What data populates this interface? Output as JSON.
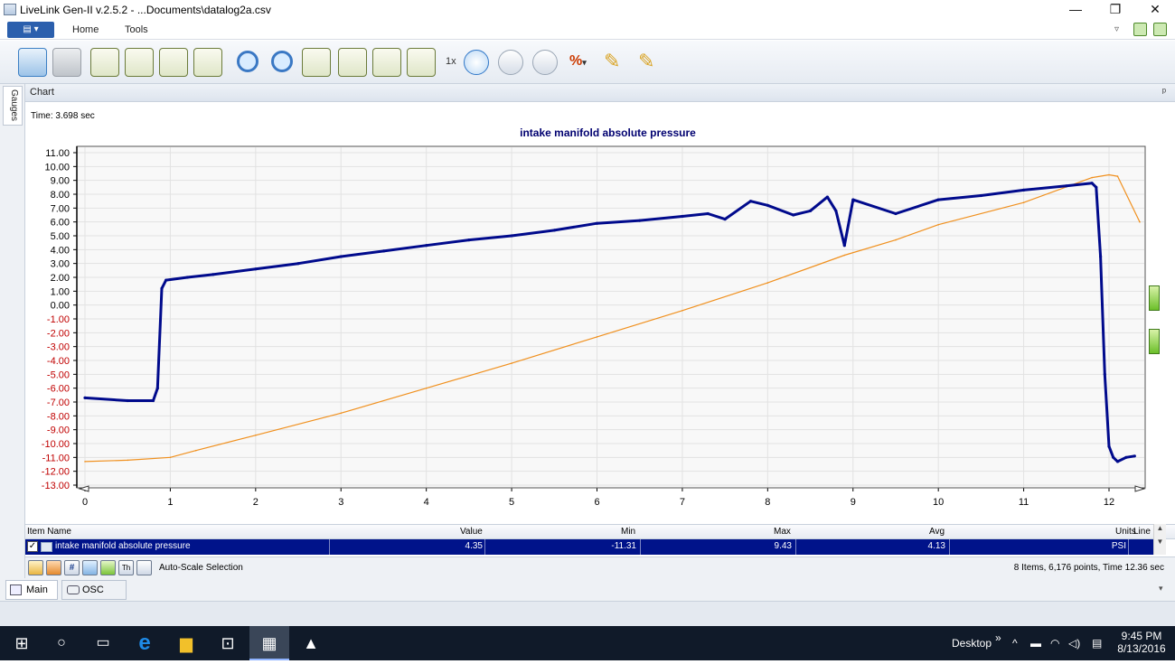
{
  "window": {
    "title": "LiveLink Gen-II  v.2.5.2 - ...Documents\\datalog2a.csv",
    "minimize_glyph": "—",
    "restore_glyph": "❐",
    "close_glyph": "✕"
  },
  "ribbon": {
    "app_menu_glyph": "▤ ▾",
    "tabs": [
      "Home",
      "Tools"
    ]
  },
  "toolbar": {
    "speed_label": "1x",
    "icons": [
      "new-session-icon",
      "save-icon",
      "max-left-icon",
      "max-right-icon",
      "cursor-left-icon",
      "cursor-right-icon",
      "zoom-out-icon",
      "zoom-in-icon",
      "fit-chart-icon",
      "chart-left-icon",
      "chart-right-icon",
      "chart-export-icon",
      "play-icon",
      "pause-icon",
      "stop-icon",
      "percent-icon",
      "pen-left-icon",
      "pen-right-icon"
    ]
  },
  "sidebar": {
    "gauges_tab": "Gauges"
  },
  "chart_panel": {
    "header": "Chart",
    "pin_glyph": "ᵖ",
    "time_label": "Time: 3.698 sec"
  },
  "chart_data": {
    "type": "line",
    "title": "intake manifold absolute pressure",
    "xlim": [
      0,
      12.36
    ],
    "ylim": [
      -13,
      11
    ],
    "x_ticks": [
      0,
      1,
      2,
      3,
      4,
      5,
      6,
      7,
      8,
      9,
      10,
      11,
      12
    ],
    "y_ticks": [
      11,
      10,
      9,
      8,
      7,
      6,
      5,
      4,
      3,
      2,
      1,
      0,
      -1,
      -2,
      -3,
      -4,
      -5,
      -6,
      -7,
      -8,
      -9,
      -10,
      -11,
      -12,
      -13
    ],
    "y_tick_labels": [
      "11.00",
      "10.00",
      "9.00",
      "8.00",
      "7.00",
      "6.00",
      "5.00",
      "4.00",
      "3.00",
      "2.00",
      "1.00",
      "0.00",
      "-1.00",
      "-2.00",
      "-3.00",
      "-4.00",
      "-5.00",
      "-6.00",
      "-7.00",
      "-8.00",
      "-9.00",
      "-10.00",
      "-11.00",
      "-12.00",
      "-13.00"
    ],
    "positive_tick_color": "#000000",
    "negative_tick_color": "#c00000",
    "grid": true,
    "series": [
      {
        "color": "#000a8c",
        "x": [
          0.0,
          0.5,
          0.8,
          0.85,
          0.9,
          0.95,
          1.2,
          1.5,
          2.0,
          2.5,
          3.0,
          3.5,
          4.0,
          4.5,
          5.0,
          5.5,
          6.0,
          6.5,
          7.0,
          7.3,
          7.5,
          7.8,
          8.0,
          8.3,
          8.5,
          8.7,
          8.8,
          8.9,
          9.0,
          9.5,
          10.0,
          10.5,
          11.0,
          11.5,
          11.8,
          11.85,
          11.9,
          11.95,
          12.0,
          12.05,
          12.1,
          12.2,
          12.3
        ],
        "y": [
          -6.7,
          -6.9,
          -6.9,
          -6.0,
          1.2,
          1.8,
          2.0,
          2.2,
          2.6,
          3.0,
          3.5,
          3.9,
          4.3,
          4.7,
          5.0,
          5.4,
          5.9,
          6.1,
          6.4,
          6.6,
          6.2,
          7.5,
          7.2,
          6.5,
          6.8,
          7.8,
          6.8,
          4.3,
          7.6,
          6.6,
          7.6,
          7.9,
          8.3,
          8.6,
          8.8,
          8.5,
          3.5,
          -5.0,
          -10.2,
          -11.0,
          -11.3,
          -11.0,
          -10.9
        ]
      },
      {
        "color": "#f0901e",
        "x": [
          0.0,
          0.5,
          1.0,
          1.3,
          2.0,
          3.0,
          4.0,
          5.0,
          6.0,
          7.0,
          8.0,
          8.9,
          9.5,
          10.0,
          11.0,
          11.8,
          12.0,
          12.1,
          12.36
        ],
        "y": [
          -11.3,
          -11.2,
          -11.0,
          -10.5,
          -9.4,
          -7.8,
          -6.0,
          -4.2,
          -2.3,
          -0.4,
          1.6,
          3.6,
          4.7,
          5.8,
          7.4,
          9.2,
          9.4,
          9.3,
          6.0
        ]
      }
    ]
  },
  "grid_table": {
    "headers": {
      "item": "Item Name",
      "value": "Value",
      "min": "Min",
      "max": "Max",
      "avg": "Avg",
      "units": "Units",
      "line": "Line"
    },
    "rows": [
      {
        "name": "intake manifold absolute pressure",
        "value": "4.35",
        "min": "-11.31",
        "max": "9.43",
        "avg": "4.13",
        "units": "PSI"
      }
    ],
    "scroll_up": "▲",
    "scroll_down": "▼"
  },
  "grid_footer": {
    "autoscale_label": "Auto-Scale Selection",
    "summary": "8 Items, 6,176 points, Time 12.36 sec"
  },
  "bottom_tabs": [
    "Main",
    "OSC"
  ],
  "taskbar": {
    "desktop_label": "Desktop",
    "chevron": "»",
    "time": "9:45 PM",
    "date": "8/13/2016"
  }
}
